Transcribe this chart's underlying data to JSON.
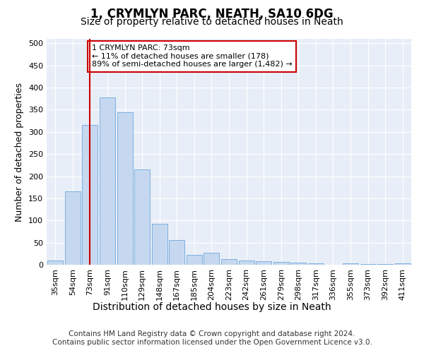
{
  "title": "1, CRYMLYN PARC, NEATH, SA10 6DG",
  "subtitle": "Size of property relative to detached houses in Neath",
  "xlabel": "Distribution of detached houses by size in Neath",
  "ylabel": "Number of detached properties",
  "categories": [
    "35sqm",
    "54sqm",
    "73sqm",
    "91sqm",
    "110sqm",
    "129sqm",
    "148sqm",
    "167sqm",
    "185sqm",
    "204sqm",
    "223sqm",
    "242sqm",
    "261sqm",
    "279sqm",
    "298sqm",
    "317sqm",
    "336sqm",
    "355sqm",
    "373sqm",
    "392sqm",
    "411sqm"
  ],
  "values": [
    10,
    165,
    315,
    378,
    345,
    215,
    93,
    55,
    23,
    27,
    12,
    10,
    8,
    6,
    5,
    3,
    0,
    3,
    1,
    1,
    3
  ],
  "bar_color": "#c5d8f0",
  "bar_edge_color": "#5b9bd5",
  "marker_index": 2,
  "marker_color": "#cc0000",
  "annotation_text": "1 CRYMLYN PARC: 73sqm\n← 11% of detached houses are smaller (178)\n89% of semi-detached houses are larger (1,482) →",
  "annotation_box_color": "#cc0000",
  "ylim": [
    0,
    510
  ],
  "yticks": [
    0,
    50,
    100,
    150,
    200,
    250,
    300,
    350,
    400,
    450,
    500
  ],
  "plot_bg_color": "#e8eef7",
  "footer_line1": "Contains HM Land Registry data © Crown copyright and database right 2024.",
  "footer_line2": "Contains public sector information licensed under the Open Government Licence v3.0.",
  "title_fontsize": 12,
  "subtitle_fontsize": 10,
  "xlabel_fontsize": 10,
  "ylabel_fontsize": 9,
  "tick_fontsize": 8,
  "footer_fontsize": 7.5
}
